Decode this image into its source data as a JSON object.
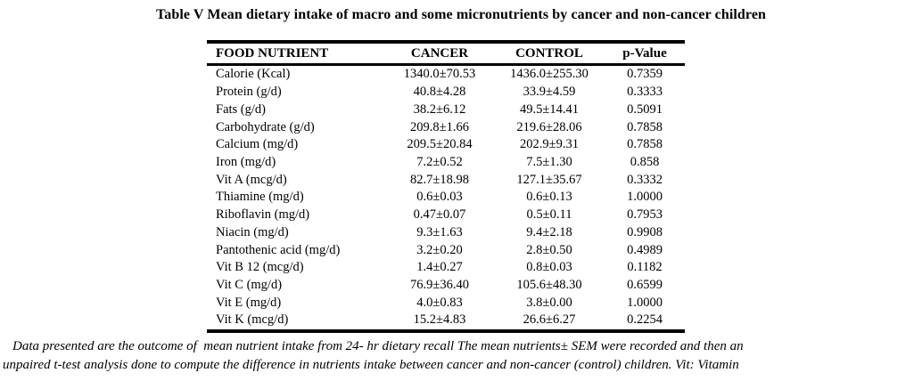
{
  "page": {
    "title": "Table V Mean dietary intake of macro and some micronutrients by cancer and non-cancer children"
  },
  "chart_data": {
    "type": "table",
    "title": "Table V Mean dietary intake of macro and some micronutrients by cancer and non-cancer children",
    "columns": [
      "FOOD NUTRIENT",
      "CANCER",
      "CONTROL",
      "p-Value"
    ],
    "rows": [
      {
        "nutrient": "Calorie (Kcal)",
        "cancer": "1340.0±70.53",
        "control": "1436.0±255.30",
        "p_value": "0.7359"
      },
      {
        "nutrient": "Protein (g/d)",
        "cancer": "40.8±4.28",
        "control": "33.9±4.59",
        "p_value": "0.3333"
      },
      {
        "nutrient": "Fats (g/d)",
        "cancer": "38.2±6.12",
        "control": "49.5±14.41",
        "p_value": "0.5091"
      },
      {
        "nutrient": "Carbohydrate (g/d)",
        "cancer": "209.8±1.66",
        "control": "219.6±28.06",
        "p_value": "0.7858"
      },
      {
        "nutrient": "Calcium (mg/d)",
        "cancer": "209.5±20.84",
        "control": "202.9±9.31",
        "p_value": "0.7858"
      },
      {
        "nutrient": "Iron (mg/d)",
        "cancer": "7.2±0.52",
        "control": "7.5±1.30",
        "p_value": "0.858"
      },
      {
        "nutrient": "Vit A (mcg/d)",
        "cancer": "82.7±18.98",
        "control": "127.1±35.67",
        "p_value": "0.3332"
      },
      {
        "nutrient": "Thiamine (mg/d)",
        "cancer": "0.6±0.03",
        "control": "0.6±0.13",
        "p_value": "1.0000"
      },
      {
        "nutrient": "Riboflavin (mg/d)",
        "cancer": "0.47±0.07",
        "control": "0.5±0.11",
        "p_value": "0.7953"
      },
      {
        "nutrient": "Niacin (mg/d)",
        "cancer": "9.3±1.63",
        "control": "9.4±2.18",
        "p_value": "0.9908"
      },
      {
        "nutrient": "Pantothenic acid (mg/d)",
        "cancer": "3.2±0.20",
        "control": "2.8±0.50",
        "p_value": "0.4989"
      },
      {
        "nutrient": "Vit B 12 (mcg/d)",
        "cancer": "1.4±0.27",
        "control": "0.8±0.03",
        "p_value": "0.1182"
      },
      {
        "nutrient": "Vit C (mg/d)",
        "cancer": "76.9±36.40",
        "control": "105.6±48.30",
        "p_value": "0.6599"
      },
      {
        "nutrient": "Vit E (mg/d)",
        "cancer": "4.0±0.83",
        "control": "3.8±0.00",
        "p_value": "1.0000"
      },
      {
        "nutrient": "Vit K (mcg/d)",
        "cancer": "15.2±4.83",
        "control": "26.6±6.27",
        "p_value": "0.2254"
      }
    ]
  },
  "footnote": {
    "line1": "Data presented are the outcome of  mean nutrient intake from 24- hr dietary recall The mean nutrients± SEM were recorded and then an",
    "line2": "unpaired t-test analysis done to compute the difference in nutrients intake between cancer and non-cancer (control) children. Vit: Vitamin"
  }
}
